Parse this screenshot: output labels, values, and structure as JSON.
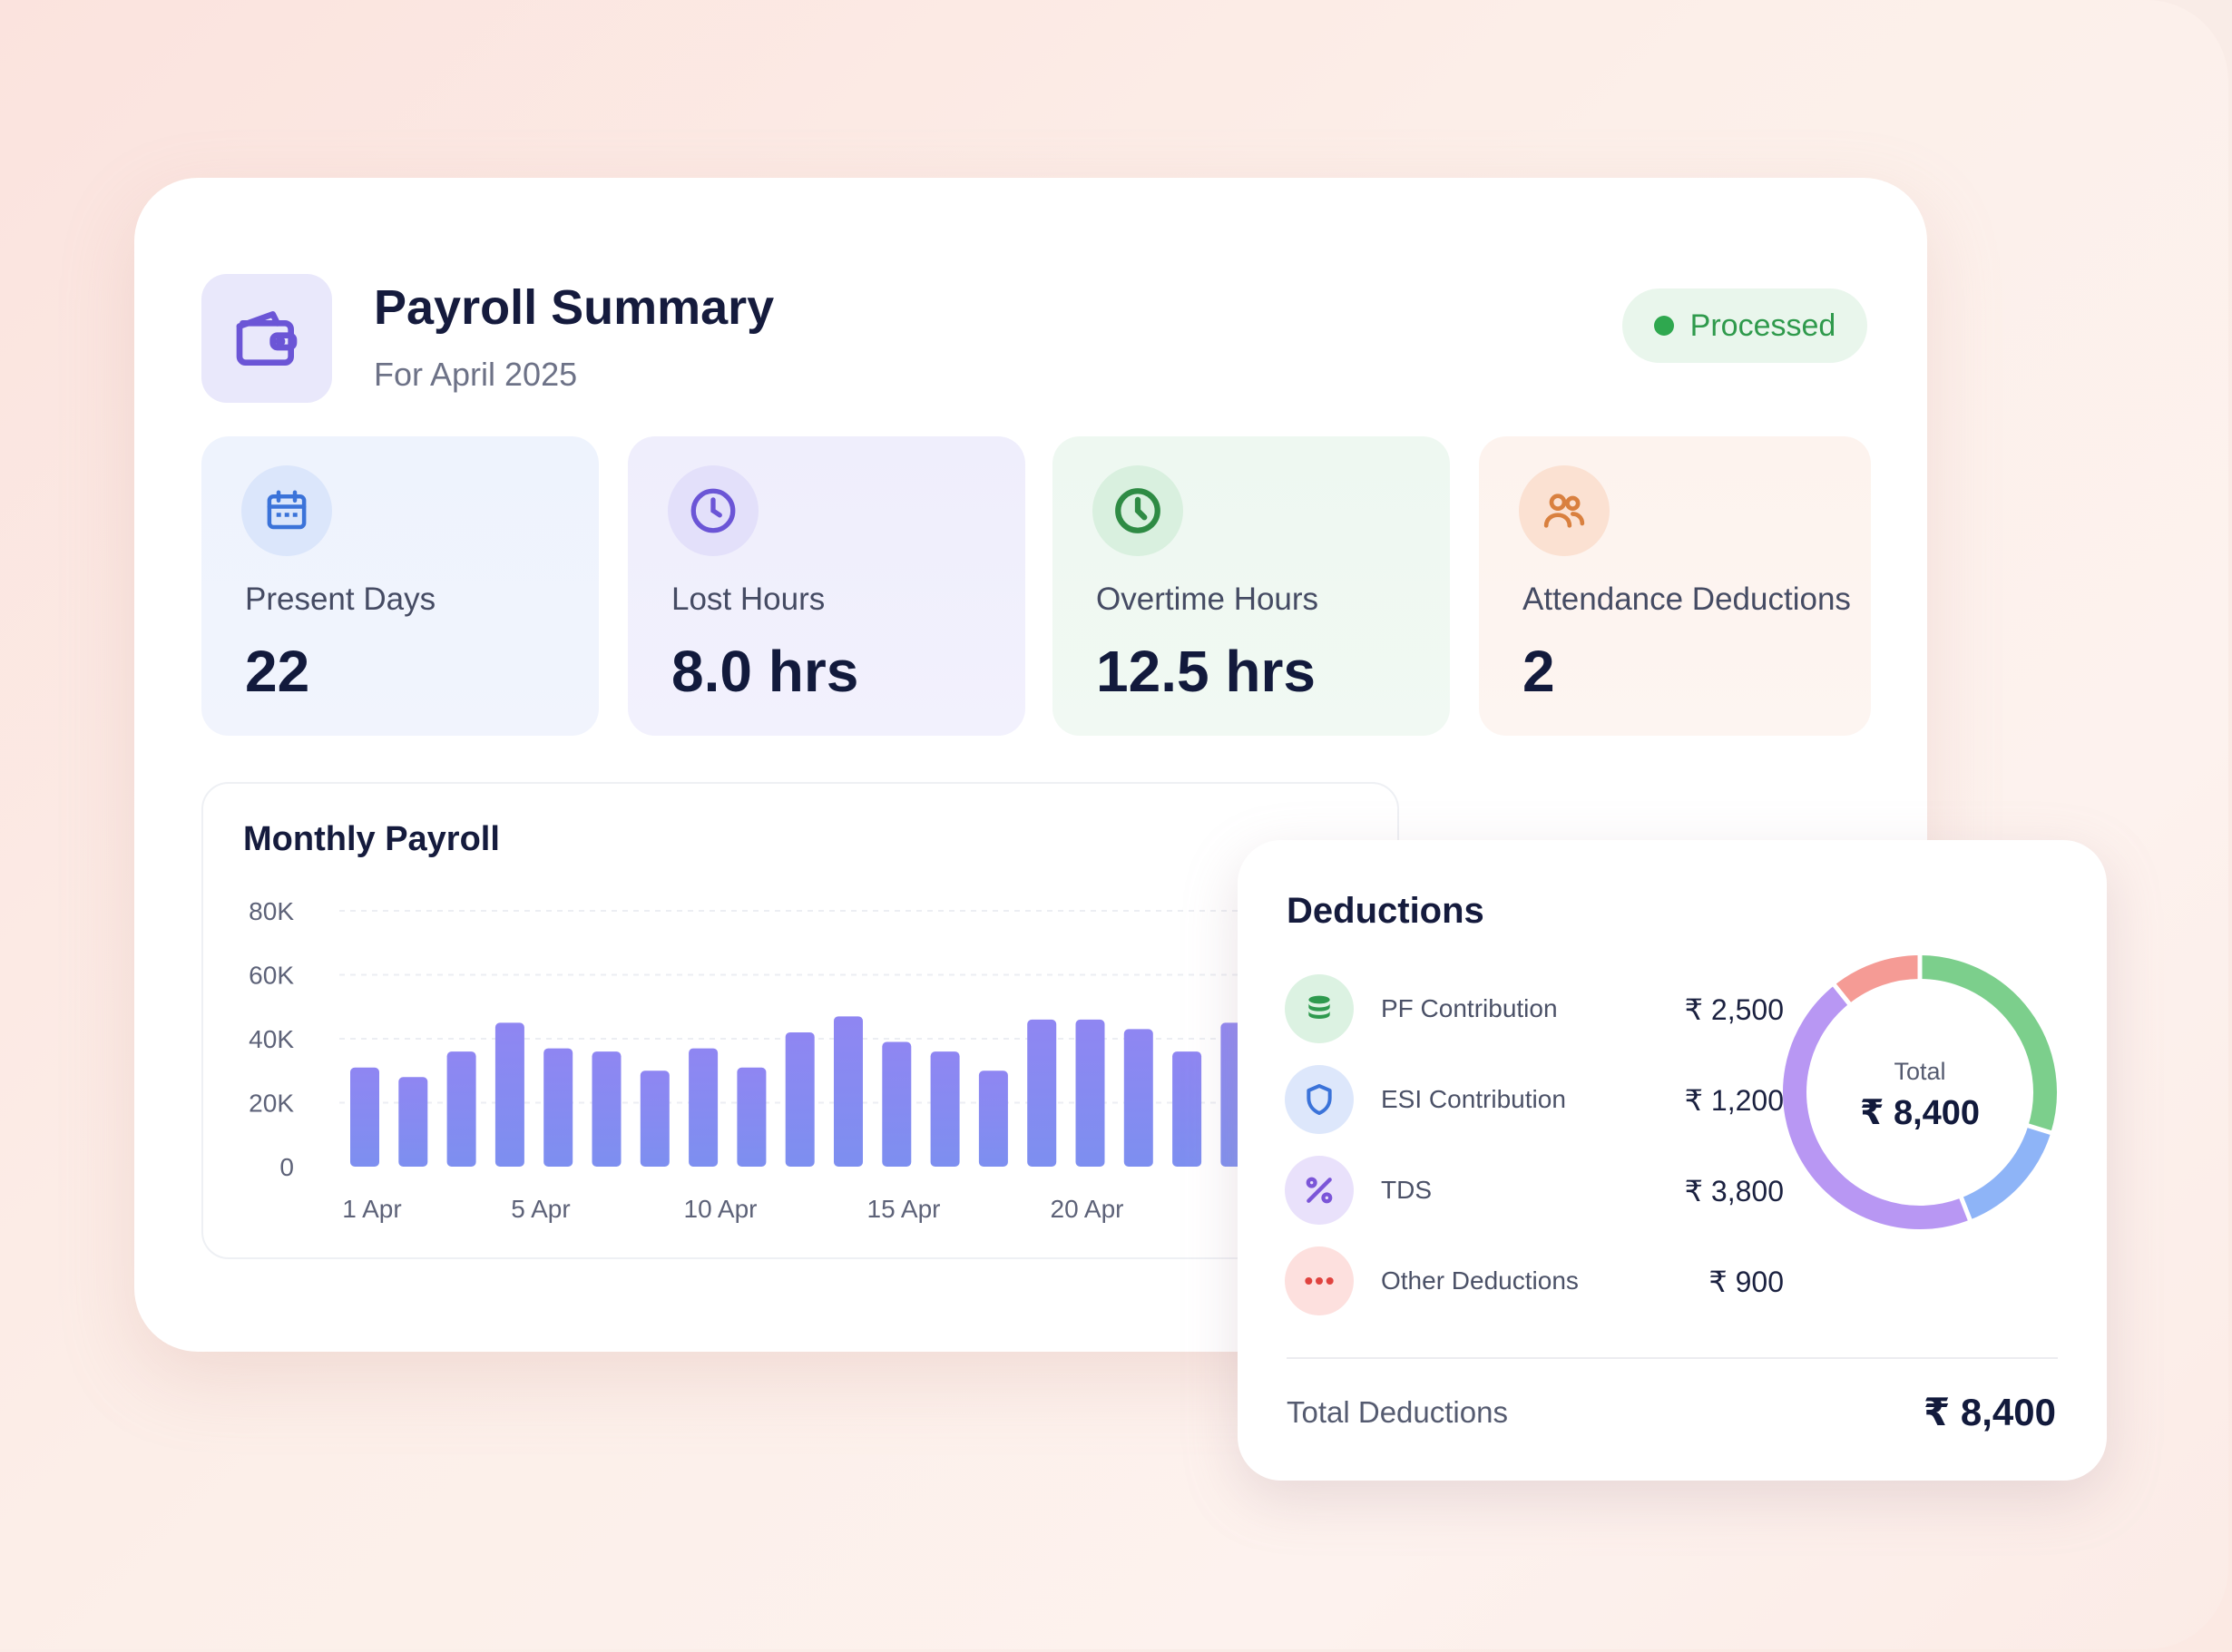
{
  "header": {
    "title": "Payroll Summary",
    "subtitle": "For April 2025",
    "status": "Processed",
    "icon": "wallet-icon"
  },
  "stats": [
    {
      "label": "Present Days",
      "value": "22",
      "icon": "calendar-icon",
      "color": "#3b73d9"
    },
    {
      "label": "Lost Hours",
      "value": "8.0 hrs",
      "icon": "clock-icon",
      "color": "#6b55d6"
    },
    {
      "label": "Overtime Hours",
      "value": "12.5 hrs",
      "icon": "clock-icon",
      "color": "#2e8b44"
    },
    {
      "label": "Attendance Deductions",
      "value": "2",
      "icon": "users-icon",
      "color": "#d9803f"
    }
  ],
  "chart_data": {
    "type": "bar",
    "title": "Monthly Payroll",
    "yticks": [
      "80K",
      "60K",
      "40K",
      "20K",
      "0"
    ],
    "ylim": [
      0,
      80000
    ],
    "xticks": [
      "1 Apr",
      "5 Apr",
      "10 Apr",
      "15 Apr",
      "20 Apr"
    ],
    "values": [
      31000,
      28000,
      36000,
      45000,
      37000,
      36000,
      30000,
      37000,
      31000,
      42000,
      47000,
      39000,
      36000,
      30000,
      46000,
      46000,
      43000,
      36000,
      45000
    ],
    "grid": true
  },
  "deductions": {
    "title": "Deductions",
    "items": [
      {
        "name": "PF Contribution",
        "amount": "₹ 2,500",
        "icon": "coins-icon",
        "color": "#3aa85a",
        "bg": "#dcf2e2"
      },
      {
        "name": "ESI Contribution",
        "amount": "₹ 1,200",
        "icon": "shield-icon",
        "color": "#3b73d9",
        "bg": "#dde7fb"
      },
      {
        "name": "TDS",
        "amount": "₹ 3,800",
        "icon": "percent-icon",
        "color": "#7b55d8",
        "bg": "#e9e1fb"
      },
      {
        "name": "Other Deductions",
        "amount": "₹ 900",
        "icon": "more-dots-icon",
        "color": "#e0433f",
        "bg": "#fde0de"
      }
    ],
    "donut_label": "Total",
    "donut_value": "₹ 8,400",
    "donut_segments": [
      {
        "name": "PF Contribution",
        "value": 2500,
        "color": "#7ccf8c"
      },
      {
        "name": "ESI Contribution",
        "value": 1200,
        "color": "#8eb4f7"
      },
      {
        "name": "TDS",
        "value": 3800,
        "color": "#b897f3"
      },
      {
        "name": "Other Deductions",
        "value": 900,
        "color": "#f59b95"
      }
    ],
    "total_label": "Total Deductions",
    "total_value": "₹ 8,400"
  }
}
